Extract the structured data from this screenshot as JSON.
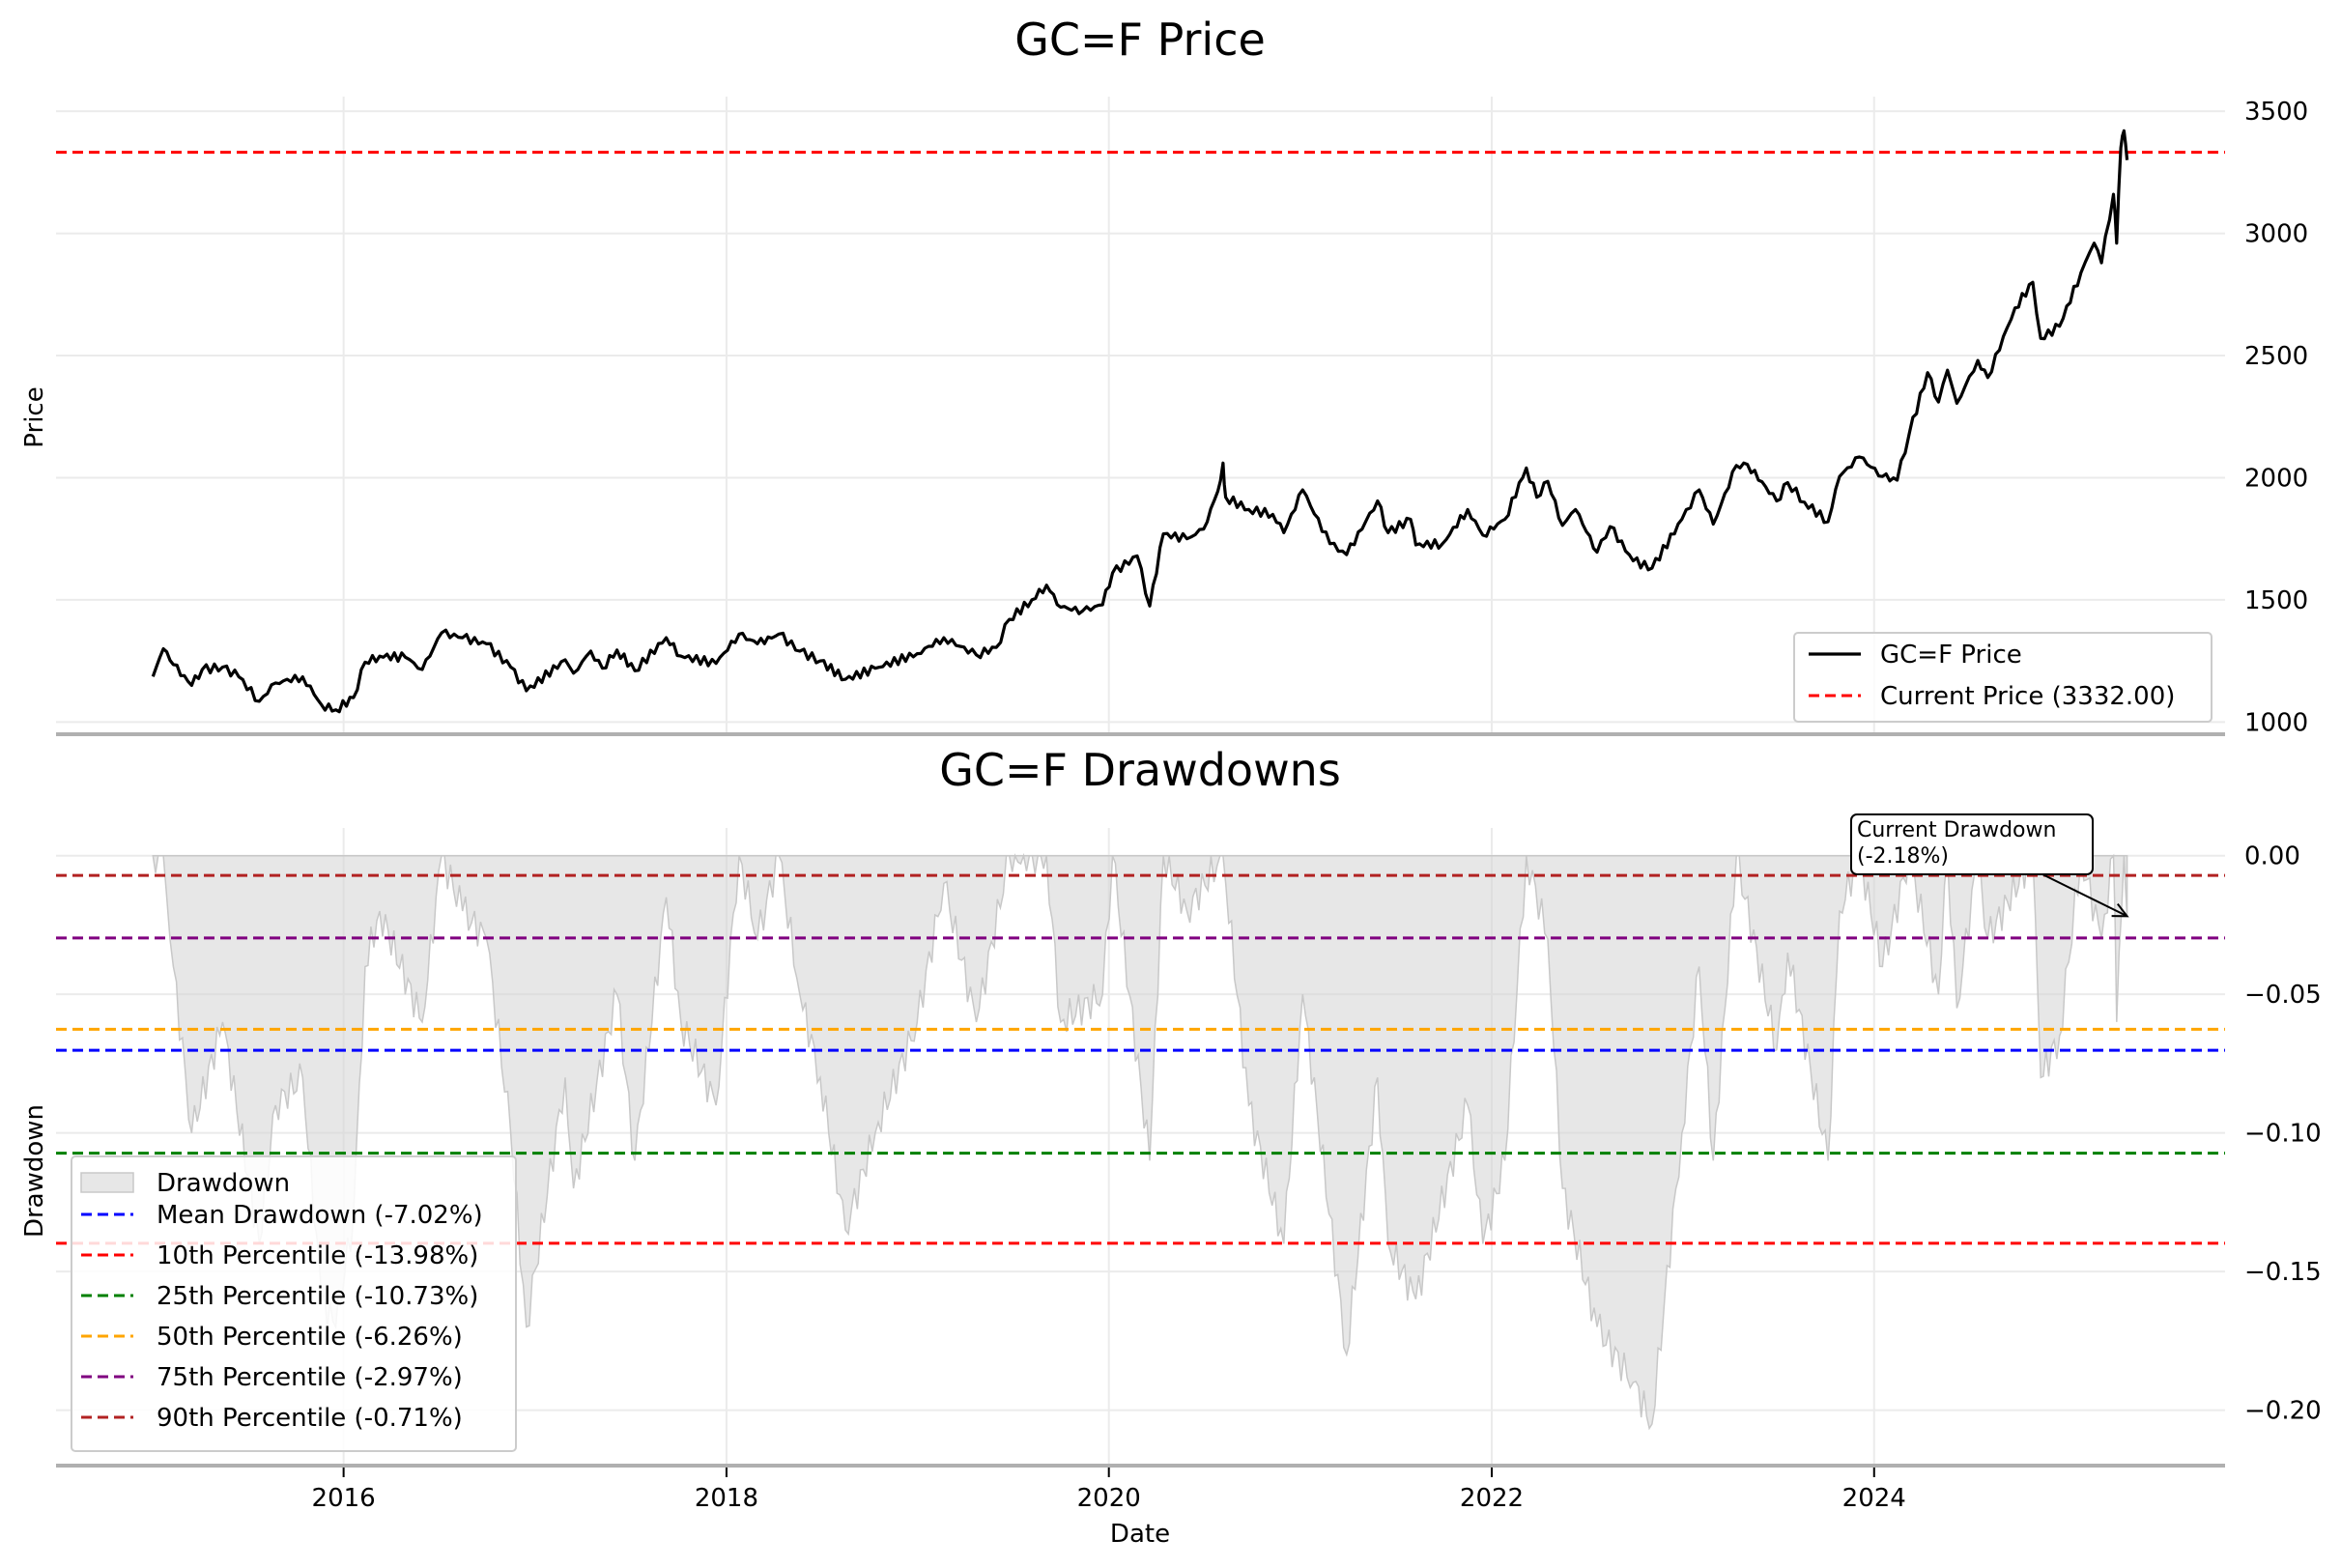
{
  "chart_data": [
    {
      "type": "line",
      "title": "GC=F Price",
      "xlabel": "",
      "ylabel": "Price",
      "xlim": [
        "2014-07-01",
        "2025-11-01"
      ],
      "ylim": [
        950,
        3560
      ],
      "yticks": [
        1000,
        1500,
        2000,
        2500,
        3000,
        3500
      ],
      "grid": true,
      "legend_position": "lower-right",
      "series": [
        {
          "name": "GC=F Price",
          "color": "#000000",
          "style": "solid",
          "points": [
            [
              "2015-01-02",
              1186
            ],
            [
              "2015-01-22",
              1300
            ],
            [
              "2015-02-10",
              1235
            ],
            [
              "2015-03-17",
              1150
            ],
            [
              "2015-04-06",
              1215
            ],
            [
              "2015-05-15",
              1225
            ],
            [
              "2015-06-15",
              1185
            ],
            [
              "2015-07-24",
              1085
            ],
            [
              "2015-08-24",
              1160
            ],
            [
              "2015-10-15",
              1185
            ],
            [
              "2015-11-20",
              1070
            ],
            [
              "2015-12-17",
              1050
            ],
            [
              "2016-01-20",
              1100
            ],
            [
              "2016-02-11",
              1245
            ],
            [
              "2016-03-10",
              1270
            ],
            [
              "2016-04-28",
              1265
            ],
            [
              "2016-05-30",
              1215
            ],
            [
              "2016-07-06",
              1365
            ],
            [
              "2016-08-15",
              1345
            ],
            [
              "2016-09-30",
              1320
            ],
            [
              "2016-11-15",
              1225
            ],
            [
              "2016-12-15",
              1128
            ],
            [
              "2017-02-27",
              1255
            ],
            [
              "2017-03-15",
              1200
            ],
            [
              "2017-04-17",
              1290
            ],
            [
              "2017-05-09",
              1220
            ],
            [
              "2017-06-06",
              1295
            ],
            [
              "2017-07-10",
              1210
            ],
            [
              "2017-09-08",
              1345
            ],
            [
              "2017-10-06",
              1270
            ],
            [
              "2017-12-12",
              1240
            ],
            [
              "2018-01-25",
              1360
            ],
            [
              "2018-03-01",
              1320
            ],
            [
              "2018-04-11",
              1360
            ],
            [
              "2018-05-21",
              1290
            ],
            [
              "2018-06-29",
              1250
            ],
            [
              "2018-08-16",
              1175
            ],
            [
              "2018-10-12",
              1220
            ],
            [
              "2018-12-31",
              1280
            ],
            [
              "2019-02-20",
              1345
            ],
            [
              "2019-04-23",
              1275
            ],
            [
              "2019-05-31",
              1305
            ],
            [
              "2019-06-25",
              1420
            ],
            [
              "2019-08-07",
              1500
            ],
            [
              "2019-09-04",
              1560
            ],
            [
              "2019-10-01",
              1470
            ],
            [
              "2019-11-12",
              1455
            ],
            [
              "2019-12-20",
              1480
            ],
            [
              "2020-01-08",
              1610
            ],
            [
              "2020-02-24",
              1680
            ],
            [
              "2020-03-19",
              1475
            ],
            [
              "2020-04-14",
              1770
            ],
            [
              "2020-05-29",
              1750
            ],
            [
              "2020-06-30",
              1790
            ],
            [
              "2020-07-27",
              1945
            ],
            [
              "2020-08-06",
              2060
            ],
            [
              "2020-08-11",
              1920
            ],
            [
              "2020-09-24",
              1870
            ],
            [
              "2020-11-09",
              1850
            ],
            [
              "2020-11-30",
              1775
            ],
            [
              "2021-01-05",
              1950
            ],
            [
              "2021-02-26",
              1730
            ],
            [
              "2021-03-30",
              1685
            ],
            [
              "2021-05-28",
              1905
            ],
            [
              "2021-06-17",
              1775
            ],
            [
              "2021-07-30",
              1830
            ],
            [
              "2021-08-09",
              1725
            ],
            [
              "2021-09-29",
              1730
            ],
            [
              "2021-11-16",
              1870
            ],
            [
              "2021-12-15",
              1765
            ],
            [
              "2022-01-26",
              1830
            ],
            [
              "2022-03-08",
              2040
            ],
            [
              "2022-03-28",
              1920
            ],
            [
              "2022-04-18",
              1985
            ],
            [
              "2022-05-16",
              1805
            ],
            [
              "2022-06-10",
              1870
            ],
            [
              "2022-07-21",
              1695
            ],
            [
              "2022-08-15",
              1800
            ],
            [
              "2022-09-28",
              1660
            ],
            [
              "2022-11-03",
              1630
            ],
            [
              "2022-12-30",
              1830
            ],
            [
              "2023-02-01",
              1950
            ],
            [
              "2023-02-28",
              1810
            ],
            [
              "2023-04-13",
              2050
            ],
            [
              "2023-05-04",
              2055
            ],
            [
              "2023-06-29",
              1905
            ],
            [
              "2023-07-20",
              1980
            ],
            [
              "2023-08-21",
              1900
            ],
            [
              "2023-10-05",
              1820
            ],
            [
              "2023-10-27",
              2005
            ],
            [
              "2023-12-04",
              2085
            ],
            [
              "2024-01-17",
              2005
            ],
            [
              "2024-02-14",
              1990
            ],
            [
              "2024-03-08",
              2180
            ],
            [
              "2024-04-12",
              2430
            ],
            [
              "2024-05-03",
              2310
            ],
            [
              "2024-05-20",
              2440
            ],
            [
              "2024-06-07",
              2305
            ],
            [
              "2024-07-17",
              2480
            ],
            [
              "2024-08-05",
              2410
            ],
            [
              "2024-09-26",
              2695
            ],
            [
              "2024-10-30",
              2800
            ],
            [
              "2024-11-14",
              2570
            ],
            [
              "2024-12-20",
              2620
            ],
            [
              "2025-01-30",
              2840
            ],
            [
              "2025-02-24",
              2960
            ],
            [
              "2025-03-10",
              2880
            ],
            [
              "2025-04-02",
              3160
            ],
            [
              "2025-04-08",
              2960
            ],
            [
              "2025-04-16",
              3350
            ],
            [
              "2025-04-22",
              3420
            ],
            [
              "2025-04-28",
              3300
            ]
          ]
        }
      ],
      "reference_lines": [
        {
          "name": "Current Price (3332.00)",
          "value": 3332,
          "color": "#ff0000",
          "style": "dashed"
        }
      ]
    },
    {
      "type": "area",
      "title": "GC=F Drawdowns",
      "xlabel": "Date",
      "ylabel": "Drawdown",
      "xlim": [
        "2014-07-01",
        "2025-11-01"
      ],
      "ylim": [
        -0.22,
        0.01
      ],
      "yticks": [
        0.0,
        -0.05,
        -0.1,
        -0.15,
        -0.2
      ],
      "ytick_labels": [
        "0.00",
        "−0.05",
        "−0.10",
        "−0.15",
        "−0.20"
      ],
      "xticks": [
        "2016-01-01",
        "2018-01-01",
        "2020-01-01",
        "2022-01-01",
        "2024-01-01"
      ],
      "xtick_labels": [
        "2016",
        "2018",
        "2020",
        "2022",
        "2024"
      ],
      "grid": true,
      "legend_position": "lower-left",
      "series": [
        {
          "name": "Drawdown",
          "color": "#d3d3d3",
          "style": "fill",
          "points": [
            [
              "2015-01-02",
              0.0
            ],
            [
              "2015-01-22",
              0.0
            ],
            [
              "2015-02-10",
              -0.04
            ],
            [
              "2015-03-17",
              -0.1
            ],
            [
              "2015-05-15",
              -0.06
            ],
            [
              "2015-07-24",
              -0.14
            ],
            [
              "2015-08-24",
              -0.09
            ],
            [
              "2015-10-15",
              -0.08
            ],
            [
              "2015-11-20",
              -0.16
            ],
            [
              "2015-12-17",
              -0.17
            ],
            [
              "2016-01-20",
              -0.13
            ],
            [
              "2016-02-11",
              -0.04
            ],
            [
              "2016-03-10",
              -0.02
            ],
            [
              "2016-05-30",
              -0.06
            ],
            [
              "2016-07-06",
              0.0
            ],
            [
              "2016-08-15",
              -0.02
            ],
            [
              "2016-09-30",
              -0.03
            ],
            [
              "2016-11-15",
              -0.1
            ],
            [
              "2016-12-15",
              -0.17
            ],
            [
              "2017-02-27",
              -0.08
            ],
            [
              "2017-03-15",
              -0.12
            ],
            [
              "2017-06-06",
              -0.05
            ],
            [
              "2017-07-10",
              -0.11
            ],
            [
              "2017-09-08",
              -0.015
            ],
            [
              "2017-10-06",
              -0.06
            ],
            [
              "2017-12-12",
              -0.09
            ],
            [
              "2018-01-25",
              0.0
            ],
            [
              "2018-03-01",
              -0.03
            ],
            [
              "2018-04-11",
              0.0
            ],
            [
              "2018-05-21",
              -0.05
            ],
            [
              "2018-06-29",
              -0.08
            ],
            [
              "2018-08-16",
              -0.135
            ],
            [
              "2018-10-12",
              -0.1
            ],
            [
              "2018-12-31",
              -0.06
            ],
            [
              "2019-02-20",
              -0.01
            ],
            [
              "2019-04-23",
              -0.06
            ],
            [
              "2019-06-25",
              0.0
            ],
            [
              "2019-09-04",
              0.0
            ],
            [
              "2019-10-01",
              -0.06
            ],
            [
              "2019-12-20",
              -0.05
            ],
            [
              "2020-01-08",
              0.0
            ],
            [
              "2020-03-19",
              -0.11
            ],
            [
              "2020-04-14",
              0.0
            ],
            [
              "2020-05-29",
              -0.02
            ],
            [
              "2020-08-06",
              0.0
            ],
            [
              "2020-09-24",
              -0.09
            ],
            [
              "2020-11-30",
              -0.14
            ],
            [
              "2021-01-05",
              -0.05
            ],
            [
              "2021-03-30",
              -0.18
            ],
            [
              "2021-05-28",
              -0.08
            ],
            [
              "2021-06-17",
              -0.14
            ],
            [
              "2021-08-09",
              -0.16
            ],
            [
              "2021-11-16",
              -0.09
            ],
            [
              "2021-12-15",
              -0.14
            ],
            [
              "2022-01-26",
              -0.11
            ],
            [
              "2022-03-08",
              0.0
            ],
            [
              "2022-04-18",
              -0.03
            ],
            [
              "2022-05-16",
              -0.12
            ],
            [
              "2022-07-21",
              -0.17
            ],
            [
              "2022-09-28",
              -0.19
            ],
            [
              "2022-11-03",
              -0.205
            ],
            [
              "2022-12-30",
              -0.1
            ],
            [
              "2023-02-01",
              -0.04
            ],
            [
              "2023-02-28",
              -0.11
            ],
            [
              "2023-04-13",
              0.0
            ],
            [
              "2023-06-29",
              -0.07
            ],
            [
              "2023-07-20",
              -0.035
            ],
            [
              "2023-10-05",
              -0.11
            ],
            [
              "2023-10-27",
              -0.02
            ],
            [
              "2023-12-04",
              0.0
            ],
            [
              "2024-01-17",
              -0.04
            ],
            [
              "2024-03-08",
              0.0
            ],
            [
              "2024-05-03",
              -0.05
            ],
            [
              "2024-05-20",
              0.0
            ],
            [
              "2024-06-07",
              -0.055
            ],
            [
              "2024-07-17",
              0.0
            ],
            [
              "2024-08-05",
              -0.03
            ],
            [
              "2024-10-30",
              0.0
            ],
            [
              "2024-11-14",
              -0.08
            ],
            [
              "2024-12-20",
              -0.065
            ],
            [
              "2025-01-30",
              0.0
            ],
            [
              "2025-03-10",
              -0.03
            ],
            [
              "2025-04-02",
              0.0
            ],
            [
              "2025-04-08",
              -0.06
            ],
            [
              "2025-04-22",
              0.0
            ],
            [
              "2025-04-28",
              -0.022
            ]
          ]
        }
      ],
      "reference_lines": [
        {
          "name": "Mean Drawdown (-7.02%)",
          "value": -0.0702,
          "color": "#0000ff",
          "style": "dashed"
        },
        {
          "name": "10th Percentile (-13.98%)",
          "value": -0.1398,
          "color": "#ff0000",
          "style": "dashed"
        },
        {
          "name": "25th Percentile (-10.73%)",
          "value": -0.1073,
          "color": "#008000",
          "style": "dashed"
        },
        {
          "name": "50th Percentile (-6.26%)",
          "value": -0.0626,
          "color": "#ffa500",
          "style": "dashed"
        },
        {
          "name": "75th Percentile (-2.97%)",
          "value": -0.0297,
          "color": "#800080",
          "style": "dashed"
        },
        {
          "name": "90th Percentile (-0.71%)",
          "value": -0.0071,
          "color": "#b22222",
          "style": "dashed"
        }
      ],
      "annotation": {
        "text_line1": "Current Drawdown",
        "text_line2": "(-2.18%)",
        "target": [
          "2025-04-28",
          -0.0218
        ],
        "text_anchor": [
          "2023-12-15",
          0.011
        ]
      }
    }
  ]
}
